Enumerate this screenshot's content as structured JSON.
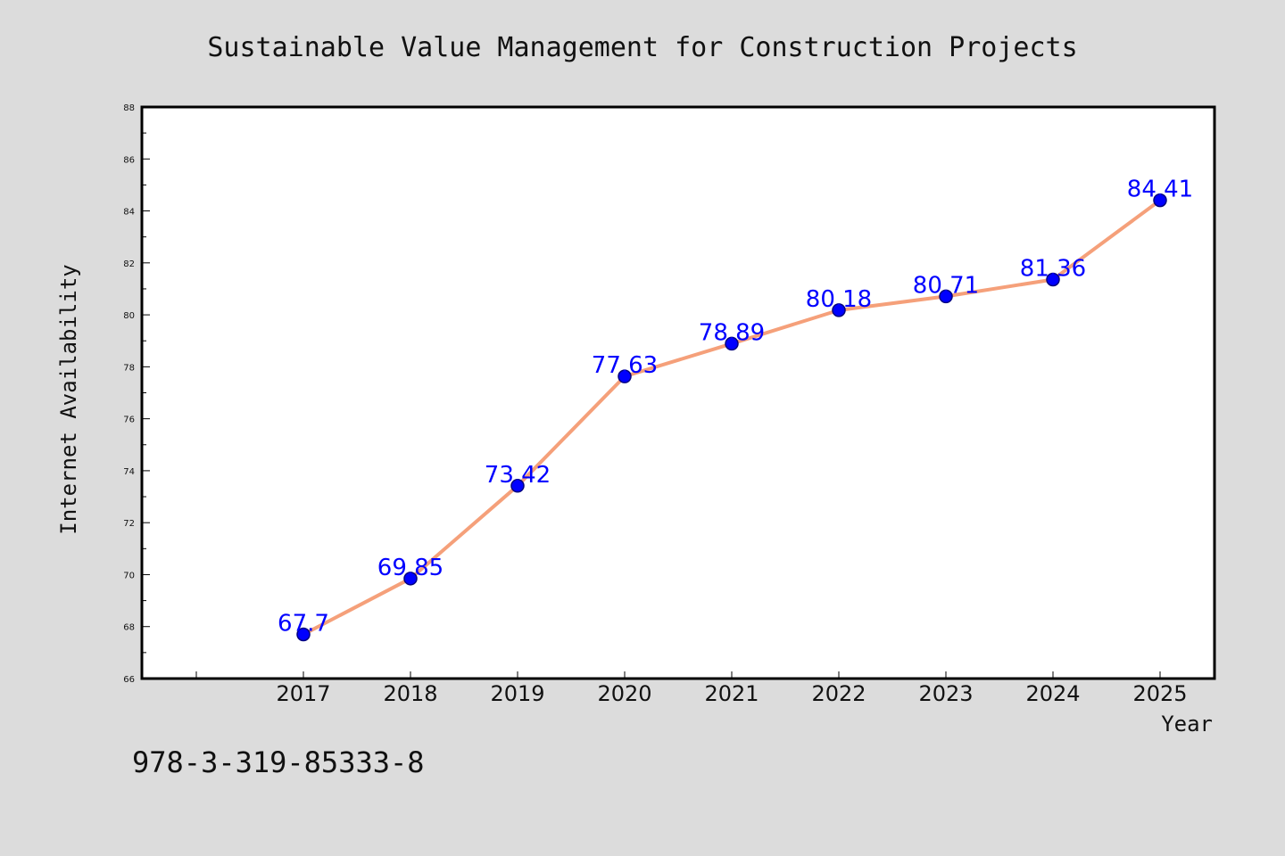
{
  "colors": {
    "background": "#dcdcdc",
    "plot_background": "#ffffff",
    "line": "#f5a07a",
    "marker_fill": "#0000ff",
    "marker_edge": "#000080",
    "data_label": "#0000ff"
  },
  "footer": {
    "isbn": "978-3-319-85333-8"
  },
  "chart_data": {
    "type": "line",
    "title": "Sustainable Value Management for Construction Projects",
    "xlabel": "Year",
    "ylabel": "Internet Availability",
    "x": [
      "2017",
      "2018",
      "2019",
      "2020",
      "2021",
      "2022",
      "2023",
      "2024",
      "2025"
    ],
    "series": [
      {
        "values": [
          67.7,
          69.85,
          73.42,
          77.63,
          78.89,
          80.18,
          80.71,
          81.36,
          84.41
        ],
        "labels": [
          "67.7",
          "69.85",
          "73.42",
          "77.63",
          "78.89",
          "80.18",
          "80.71",
          "81.36",
          "84.41"
        ]
      }
    ],
    "ylim": [
      66,
      88
    ],
    "yticks": [
      "66",
      "68",
      "70",
      "72",
      "74",
      "76",
      "78",
      "80",
      "82",
      "84",
      "86",
      "88"
    ],
    "grid": false,
    "legend": "none"
  }
}
